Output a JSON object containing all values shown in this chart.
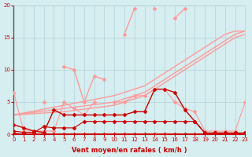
{
  "x": [
    0,
    1,
    2,
    3,
    4,
    5,
    6,
    7,
    8,
    9,
    10,
    11,
    12,
    13,
    14,
    15,
    16,
    17,
    18,
    19,
    20,
    21,
    22,
    23
  ],
  "line1": [
    6.5,
    0.5,
    0.5,
    0.5,
    0.5,
    5.0,
    4.0,
    3.0,
    5.0,
    null,
    5.0,
    5.0,
    6.0,
    6.0,
    7.0,
    7.0,
    5.0,
    4.0,
    3.5,
    0.5,
    0.5,
    0.5,
    0.5,
    5.0
  ],
  "line2": [
    1.5,
    1.0,
    0.5,
    0.3,
    3.8,
    3.0,
    3.0,
    3.0,
    3.0,
    3.0,
    3.0,
    3.0,
    3.5,
    3.5,
    7.0,
    7.0,
    6.5,
    3.8,
    2.0,
    0.2,
    0.2,
    0.2,
    0.2,
    0.2
  ],
  "line3": [
    0.5,
    0.3,
    0.3,
    1.2,
    1.0,
    1.0,
    1.0,
    2.0,
    2.0,
    2.0,
    2.0,
    2.0,
    2.0,
    2.0,
    2.0,
    2.0,
    2.0,
    2.0,
    2.0,
    0.2,
    0.2,
    0.2,
    0.2,
    0.2
  ],
  "line4": [
    0.2,
    0.0,
    0.0,
    0.0,
    0.0,
    0.0,
    0.0,
    0.0,
    0.0,
    0.0,
    0.0,
    0.0,
    0.0,
    0.0,
    0.0,
    0.0,
    0.0,
    0.0,
    0.0,
    0.0,
    0.0,
    0.0,
    0.0,
    0.0
  ],
  "line5_light": [
    null,
    null,
    null,
    5.0,
    null,
    10.5,
    10.0,
    5.0,
    9.0,
    8.5,
    null,
    15.5,
    19.5,
    null,
    19.5,
    null,
    18.0,
    19.5,
    null,
    null,
    null,
    null,
    null,
    null
  ],
  "line5": [
    null,
    null,
    null,
    null,
    null,
    5.0,
    null,
    null,
    null,
    8.5,
    null,
    15.5,
    19.5,
    null,
    19.5,
    null,
    18.0,
    19.5,
    null,
    null,
    null,
    null,
    null,
    null
  ],
  "diag1": [
    3.0,
    3.3,
    3.6,
    3.9,
    4.2,
    4.5,
    4.8,
    5.1,
    5.4,
    5.7,
    6.0,
    6.5,
    7.0,
    7.5,
    8.5,
    9.5,
    10.5,
    11.5,
    12.5,
    13.5,
    14.5,
    15.5,
    16.0,
    16.0
  ],
  "diag2": [
    3.0,
    3.2,
    3.4,
    3.6,
    3.8,
    4.0,
    4.2,
    4.4,
    4.6,
    4.8,
    5.0,
    5.5,
    6.0,
    6.5,
    7.5,
    8.5,
    9.5,
    10.5,
    11.5,
    12.5,
    13.5,
    14.5,
    15.5,
    16.0
  ],
  "diag3": [
    3.0,
    3.1,
    3.2,
    3.3,
    3.4,
    3.5,
    3.7,
    3.9,
    4.1,
    4.3,
    4.5,
    5.0,
    5.5,
    6.0,
    7.0,
    8.0,
    9.0,
    10.0,
    11.0,
    12.0,
    13.0,
    14.0,
    15.0,
    15.5
  ],
  "bg_color": "#d6eef0",
  "grid_color": "#b0d0d8",
  "line_color_dark": "#cc0000",
  "line_color_light": "#ff9999",
  "xlabel": "Vent moyen/en rafales ( km/h )",
  "ylim": [
    0,
    20
  ],
  "xlim": [
    0,
    23
  ]
}
